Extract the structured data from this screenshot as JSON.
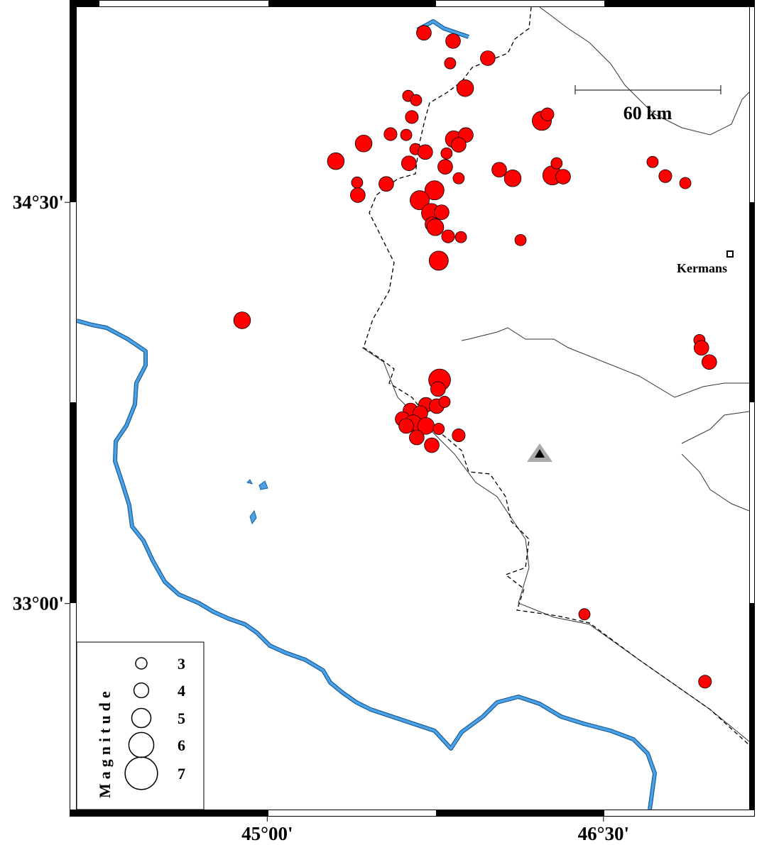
{
  "chart_data": {
    "type": "scatter",
    "x": [
      45.699,
      45.829,
      45.816,
      45.984,
      45.883,
      45.629,
      45.664,
      45.645,
      46.225,
      46.25,
      45.55,
      45.62,
      45.43,
      45.832,
      45.886,
      45.854,
      45.661,
      45.705,
      45.8,
      45.306,
      45.632,
      45.794,
      46.035,
      46.095,
      46.272,
      46.291,
      46.32,
      45.854,
      45.401,
      45.531,
      45.404,
      45.746,
      45.68,
      45.731,
      45.778,
      45.737,
      45.75,
      45.807,
      45.864,
      46.13,
      45.765,
      46.719,
      46.776,
      46.865,
      44.888,
      46.928,
      46.937,
      46.972,
      45.769,
      45.762,
      45.708,
      45.756,
      45.791,
      45.639,
      45.683,
      45.604,
      45.651,
      45.708,
      45.62,
      45.765,
      45.854,
      45.667,
      45.734,
      46.415,
      46.953
    ],
    "y": [
      35.134,
      35.103,
      35.02,
      35.039,
      34.927,
      34.898,
      34.882,
      34.819,
      34.805,
      34.829,
      34.755,
      34.752,
      34.72,
      34.736,
      34.752,
      34.715,
      34.699,
      34.688,
      34.683,
      34.654,
      34.646,
      34.633,
      34.622,
      34.59,
      34.601,
      34.646,
      34.596,
      34.59,
      34.574,
      34.569,
      34.527,
      34.545,
      34.508,
      34.46,
      34.463,
      34.418,
      34.407,
      34.373,
      34.37,
      34.359,
      34.282,
      34.651,
      34.598,
      34.572,
      34.059,
      33.985,
      33.956,
      33.903,
      33.836,
      33.802,
      33.743,
      33.738,
      33.754,
      33.722,
      33.712,
      33.69,
      33.674,
      33.664,
      33.664,
      33.653,
      33.629,
      33.621,
      33.592,
      32.96,
      32.708
    ],
    "size": [
      4,
      4,
      3,
      4,
      4.5,
      3,
      3,
      3.5,
      5,
      3.5,
      3.5,
      3,
      4.5,
      4.5,
      4,
      4,
      3,
      4,
      3,
      4.5,
      4,
      4,
      4,
      4.5,
      5,
      3,
      4,
      3,
      3,
      4,
      4,
      5,
      5,
      5,
      4,
      4,
      4.5,
      3.5,
      3,
      3,
      5,
      3,
      3.5,
      3,
      4.5,
      3,
      4,
      4,
      5.5,
      4,
      4,
      4,
      3,
      4,
      4,
      4,
      4.5,
      4.5,
      4,
      3,
      3.5,
      4,
      4,
      3,
      3.5
    ],
    "color": "#ff0000",
    "xlim": [
      44.15,
      47.15
    ],
    "ylim": [
      32.23,
      35.23
    ],
    "xticks": [
      {
        "value": 45,
        "label": "45°00'"
      },
      {
        "value": 46.5,
        "label": "46°30'"
      }
    ],
    "yticks": [
      {
        "value": 33,
        "label": "33°00'"
      },
      {
        "value": 34.5,
        "label": "34°30'"
      }
    ],
    "scale_bar": "60 km",
    "city": "Kermans",
    "legend": {
      "title": "Magnitude",
      "sizes": [
        3,
        4,
        5,
        6,
        7
      ]
    }
  }
}
